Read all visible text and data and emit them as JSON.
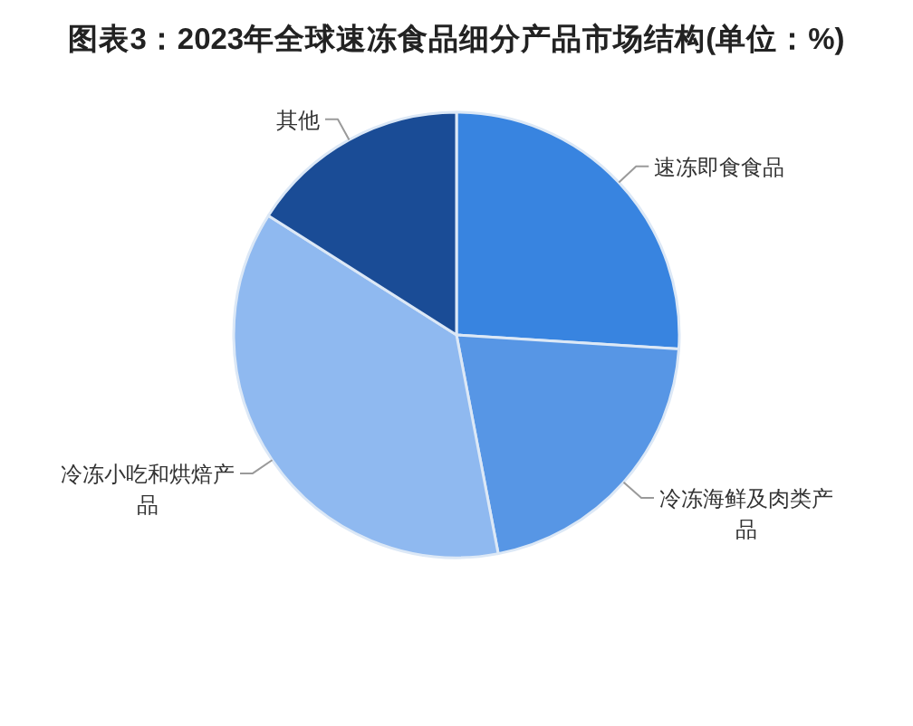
{
  "chart_data": {
    "type": "pie",
    "title": "图表3：2023年全球速冻食品细分产品市场结构(单位：%)",
    "categories": [
      "速冻即食食品",
      "冷冻海鲜及肉类产品",
      "冷冻小吃和烘焙产品",
      "其他"
    ],
    "values": [
      26,
      21,
      37,
      16
    ],
    "colors": [
      "#3884e0",
      "#5796e5",
      "#8fb9f0",
      "#1a4c96"
    ]
  }
}
